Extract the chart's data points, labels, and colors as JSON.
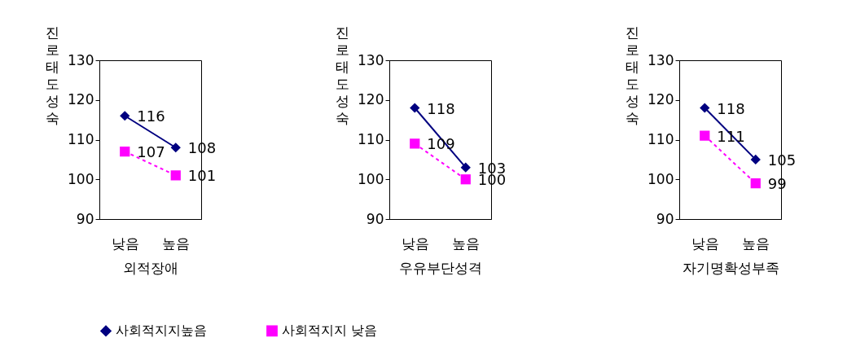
{
  "chart_data": [
    {
      "type": "line",
      "xlabel": "외적장애",
      "ylabel": "진로태도성숙",
      "categories": [
        "낮음",
        "높음"
      ],
      "ylim": [
        90,
        130
      ],
      "yticks": [
        90,
        100,
        110,
        120,
        130
      ],
      "grid": false,
      "legend": "bottom",
      "data_labels": true,
      "series": [
        {
          "name": "사회적지지높음",
          "color": "#000080",
          "values": [
            116,
            108
          ],
          "marker": "diamond",
          "line_style": "solid"
        },
        {
          "name": "사회적지지 낮음",
          "color": "#ff00ff",
          "values": [
            107,
            101
          ],
          "marker": "square",
          "line_style": "dashed"
        }
      ]
    },
    {
      "type": "line",
      "xlabel": "우유부단성격",
      "ylabel": "진로태도성숙",
      "categories": [
        "낮음",
        "높음"
      ],
      "ylim": [
        90,
        130
      ],
      "yticks": [
        90,
        100,
        110,
        120,
        130
      ],
      "grid": false,
      "legend": "bottom",
      "data_labels": true,
      "series": [
        {
          "name": "사회적지지높음",
          "color": "#000080",
          "values": [
            118,
            103
          ],
          "marker": "diamond",
          "line_style": "solid"
        },
        {
          "name": "사회적지지 낮음",
          "color": "#ff00ff",
          "values": [
            109,
            100
          ],
          "marker": "square",
          "line_style": "dashed"
        }
      ]
    },
    {
      "type": "line",
      "xlabel": "자기명확성부족",
      "ylabel": "진로태도성숙",
      "categories": [
        "낮음",
        "높음"
      ],
      "ylim": [
        90,
        130
      ],
      "yticks": [
        90,
        100,
        110,
        120,
        130
      ],
      "grid": false,
      "legend": "bottom",
      "data_labels": true,
      "series": [
        {
          "name": "사회적지지높음",
          "color": "#000080",
          "values": [
            118,
            105
          ],
          "marker": "diamond",
          "line_style": "solid"
        },
        {
          "name": "사회적지지 낮음",
          "color": "#ff00ff",
          "values": [
            111,
            99
          ],
          "marker": "square",
          "line_style": "dashed"
        }
      ]
    }
  ]
}
